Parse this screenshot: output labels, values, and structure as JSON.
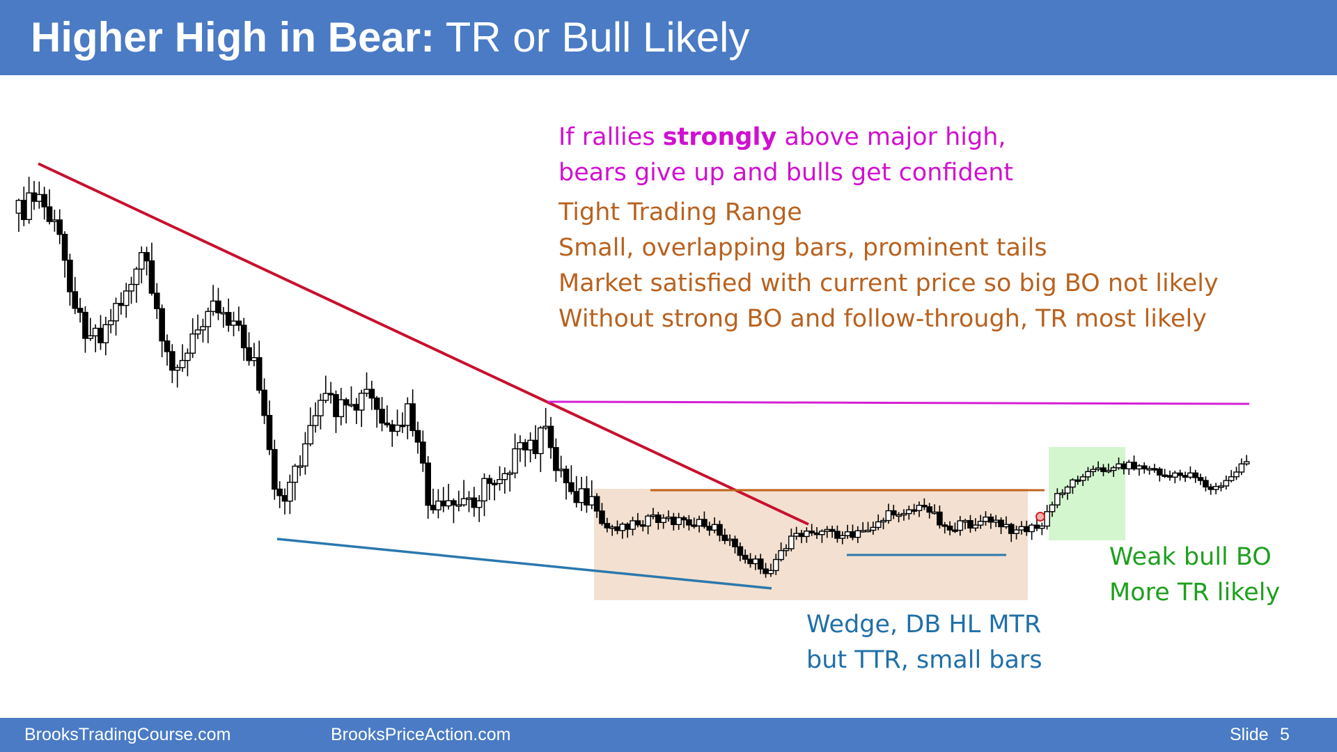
{
  "header": {
    "title_bold": "Higher High in Bear:",
    "title_rest": " TR or Bull Likely"
  },
  "notes": {
    "magenta": {
      "line1_start": "If rallies ",
      "line1_bold": "strongly",
      "line1_end": " above major high,",
      "line2": "bears give up and bulls get confident"
    },
    "brown": [
      "Tight Trading Range",
      "Small, overlapping bars, prominent tails",
      "Market satisfied with current price so big BO not likely",
      "Without strong BO and follow-through, TR most likely"
    ],
    "blue": [
      "Wedge, DB HL MTR",
      "but TTR, small bars"
    ],
    "green": [
      "Weak bull BO",
      "More TR likely"
    ]
  },
  "footer": {
    "site1": "BrooksTradingCourse.com",
    "site2": "BrooksPriceAction.com",
    "slide_label": "Slide",
    "slide_number": "5"
  }
}
